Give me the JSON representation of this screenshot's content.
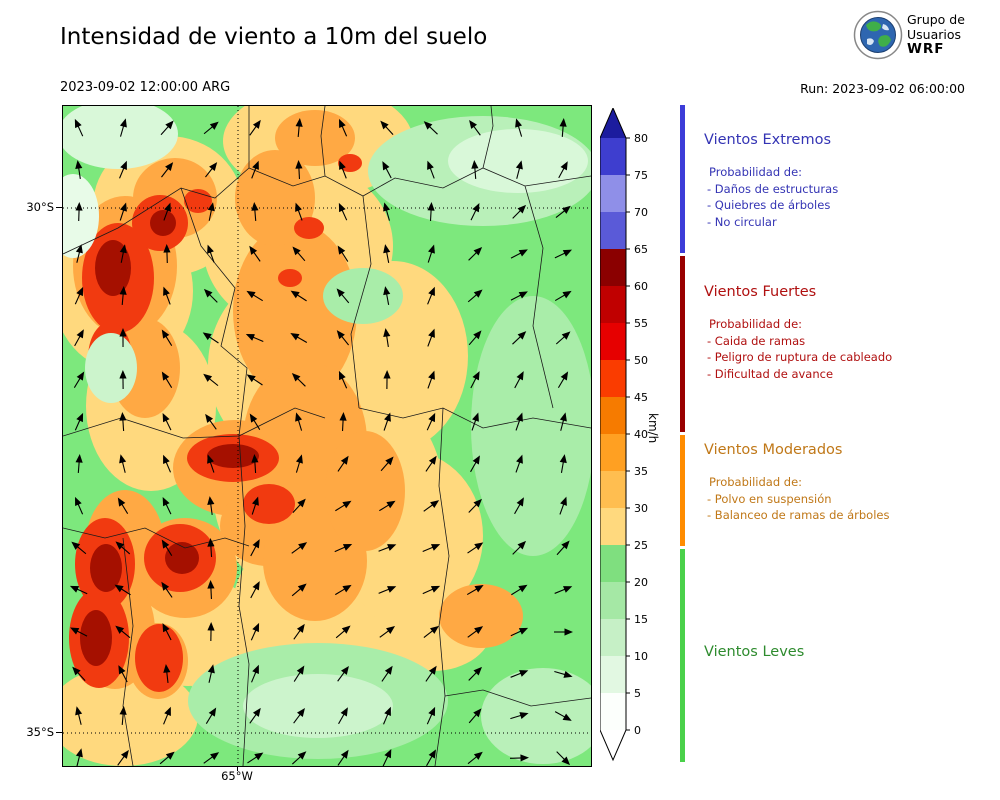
{
  "header": {
    "title": "Intensidad de viento a 10m del suelo",
    "valid_time": "2023-09-02 12:00:00 ARG",
    "run_label": "Run: 2023-09-02 06:00:00",
    "logo": {
      "line1": "Grupo de",
      "line2": "Usuarios",
      "line3": "WRF"
    }
  },
  "map": {
    "lat_labels": [
      "30°S",
      "35°S"
    ],
    "lon_label": "65°W"
  },
  "colorbar": {
    "unit": "km/h",
    "ticks_top_to_bottom": [
      "80",
      "75",
      "70",
      "65",
      "60",
      "55",
      "50",
      "45",
      "40",
      "35",
      "30",
      "25",
      "20",
      "15",
      "10",
      "5",
      "0"
    ],
    "over_color": "#1c1c9e",
    "under_color": "#ffffff",
    "segments_top_to_bottom": [
      "#3e3ecf",
      "#8f8fe8",
      "#5a5ad8",
      "#8b0000",
      "#c00000",
      "#e60000",
      "#fa3c00",
      "#f67b00",
      "#ffa022",
      "#ffbe50",
      "#ffd97e",
      "#7fdf7f",
      "#a5e8a5",
      "#c6f0c6",
      "#e2f8e2",
      "#fcfffc"
    ]
  },
  "legend": {
    "sections": [
      {
        "title": "Vientos Extremos",
        "color": "#3434b4",
        "bar_color": "#3c3cd8",
        "prob_label": "Probabilidad de:",
        "items": [
          "- Daños de estructuras",
          "- Quiebres de árboles",
          "- No circular"
        ]
      },
      {
        "title": "Vientos Fuertes",
        "color": "#b01010",
        "bar_color": "#990000",
        "prob_label": "Probabilidad de:",
        "items": [
          "- Caida de ramas",
          "- Peligro de ruptura de cableado",
          "- Dificultad de avance"
        ]
      },
      {
        "title": "Vientos Moderados",
        "color": "#c07818",
        "bar_color": "#ff8c00",
        "prob_label": "Probabilidad de:",
        "items": [
          "- Polvo en suspensión",
          "- Balanceo de ramas de árboles"
        ]
      },
      {
        "title": "Vientos Leves",
        "color": "#2e8b2e",
        "bar_color": "#4ad14a"
      }
    ]
  }
}
